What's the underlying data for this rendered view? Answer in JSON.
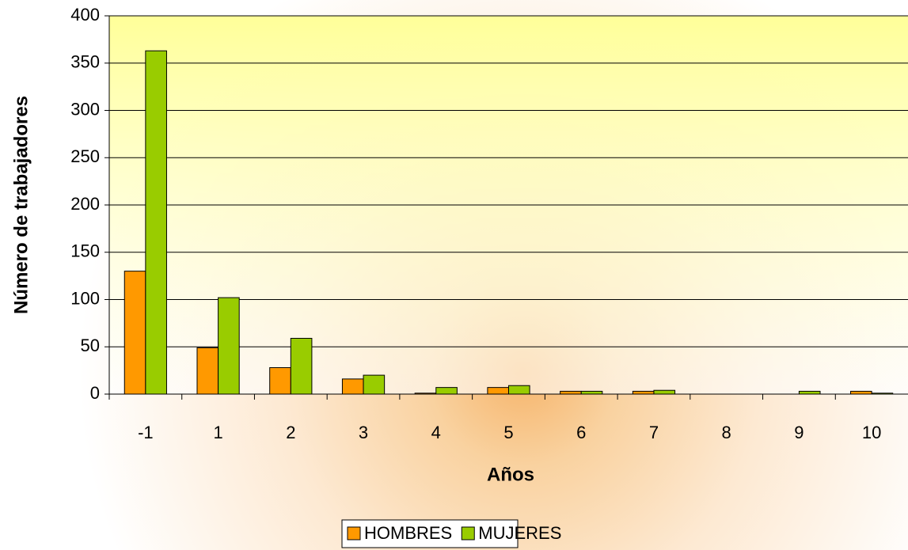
{
  "chart_data": {
    "type": "bar",
    "x_label": "Años",
    "y_label": "Número de trabajadores",
    "categories": [
      "-1",
      "1",
      "2",
      "3",
      "4",
      "5",
      "6",
      "7",
      "8",
      "9",
      "10"
    ],
    "series": [
      {
        "name": "HOMBRES",
        "color": "#ff9900",
        "values": [
          130,
          49,
          28,
          16,
          1,
          7,
          3,
          3,
          0,
          0,
          3
        ]
      },
      {
        "name": "MUJERES",
        "color": "#99cc00",
        "values": [
          363,
          102,
          59,
          20,
          7,
          9,
          3,
          4,
          0,
          3,
          1
        ]
      }
    ],
    "ylim": [
      0,
      400
    ],
    "yticks": [
      0,
      50,
      100,
      150,
      200,
      250,
      300,
      350,
      400
    ],
    "grid": true,
    "legend": "bottom"
  }
}
